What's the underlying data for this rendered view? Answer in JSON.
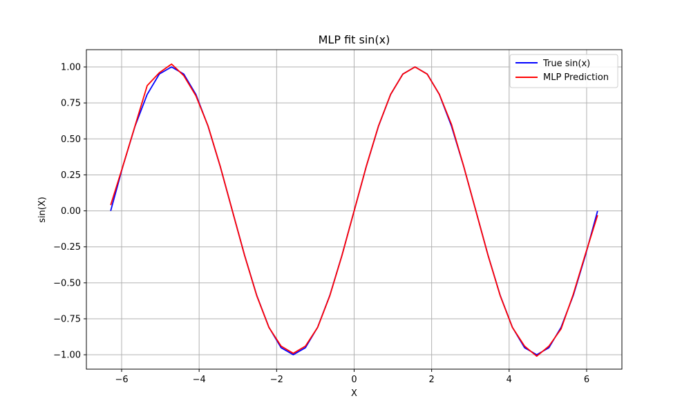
{
  "chart_data": {
    "type": "line",
    "title": "MLP fit sin(x)",
    "xlabel": "X",
    "ylabel": "sin(X)",
    "xlim": [
      -6.91,
      6.91
    ],
    "ylim": [
      -1.1,
      1.12
    ],
    "xticks": [
      -6,
      -4,
      -2,
      0,
      2,
      4,
      6
    ],
    "xtick_labels": [
      "−6",
      "−4",
      "−2",
      "0",
      "2",
      "4",
      "6"
    ],
    "yticks": [
      -1.0,
      -0.75,
      -0.5,
      -0.25,
      0.0,
      0.25,
      0.5,
      0.75,
      1.0
    ],
    "ytick_labels": [
      "−1.00",
      "−0.75",
      "−0.50",
      "−0.25",
      "0.00",
      "0.25",
      "0.50",
      "0.75",
      "1.00"
    ],
    "grid": true,
    "legend_position": "top-right",
    "series": [
      {
        "name": "True sin(x)",
        "color": "#0000ff",
        "x": [
          -6.283,
          -5.969,
          -5.655,
          -5.341,
          -5.027,
          -4.712,
          -4.398,
          -4.084,
          -3.77,
          -3.456,
          -3.142,
          -2.827,
          -2.513,
          -2.199,
          -1.885,
          -1.571,
          -1.257,
          -0.942,
          -0.628,
          -0.314,
          0.0,
          0.314,
          0.628,
          0.942,
          1.257,
          1.571,
          1.885,
          2.199,
          2.513,
          2.827,
          3.142,
          3.456,
          3.77,
          4.084,
          4.398,
          4.712,
          5.027,
          5.341,
          5.655,
          5.969,
          6.283
        ],
        "y": [
          0.0,
          0.309,
          0.588,
          0.809,
          0.951,
          1.0,
          0.951,
          0.809,
          0.588,
          0.309,
          0.0,
          -0.309,
          -0.588,
          -0.809,
          -0.951,
          -1.0,
          -0.951,
          -0.809,
          -0.588,
          -0.309,
          0.0,
          0.309,
          0.588,
          0.809,
          0.951,
          1.0,
          0.951,
          0.809,
          0.588,
          0.309,
          0.0,
          -0.309,
          -0.588,
          -0.809,
          -0.951,
          -1.0,
          -0.951,
          -0.809,
          -0.588,
          -0.309,
          0.0
        ]
      },
      {
        "name": "MLP Prediction",
        "color": "#ff0000",
        "x": [
          -6.283,
          -5.969,
          -5.655,
          -5.341,
          -5.027,
          -4.712,
          -4.398,
          -4.084,
          -3.77,
          -3.456,
          -3.142,
          -2.827,
          -2.513,
          -2.199,
          -1.885,
          -1.571,
          -1.257,
          -0.942,
          -0.628,
          -0.314,
          0.0,
          0.314,
          0.628,
          0.942,
          1.257,
          1.571,
          1.885,
          2.199,
          2.513,
          2.827,
          3.142,
          3.456,
          3.77,
          4.084,
          4.398,
          4.712,
          5.027,
          5.341,
          5.655,
          5.969,
          6.283
        ],
        "y": [
          0.04,
          0.31,
          0.59,
          0.87,
          0.96,
          1.02,
          0.94,
          0.8,
          0.59,
          0.31,
          0.0,
          -0.31,
          -0.59,
          -0.81,
          -0.94,
          -0.99,
          -0.94,
          -0.81,
          -0.59,
          -0.31,
          0.0,
          0.31,
          0.59,
          0.81,
          0.95,
          1.0,
          0.95,
          0.81,
          0.6,
          0.31,
          0.0,
          -0.31,
          -0.59,
          -0.81,
          -0.94,
          -1.01,
          -0.94,
          -0.82,
          -0.58,
          -0.3,
          -0.03
        ]
      }
    ]
  }
}
